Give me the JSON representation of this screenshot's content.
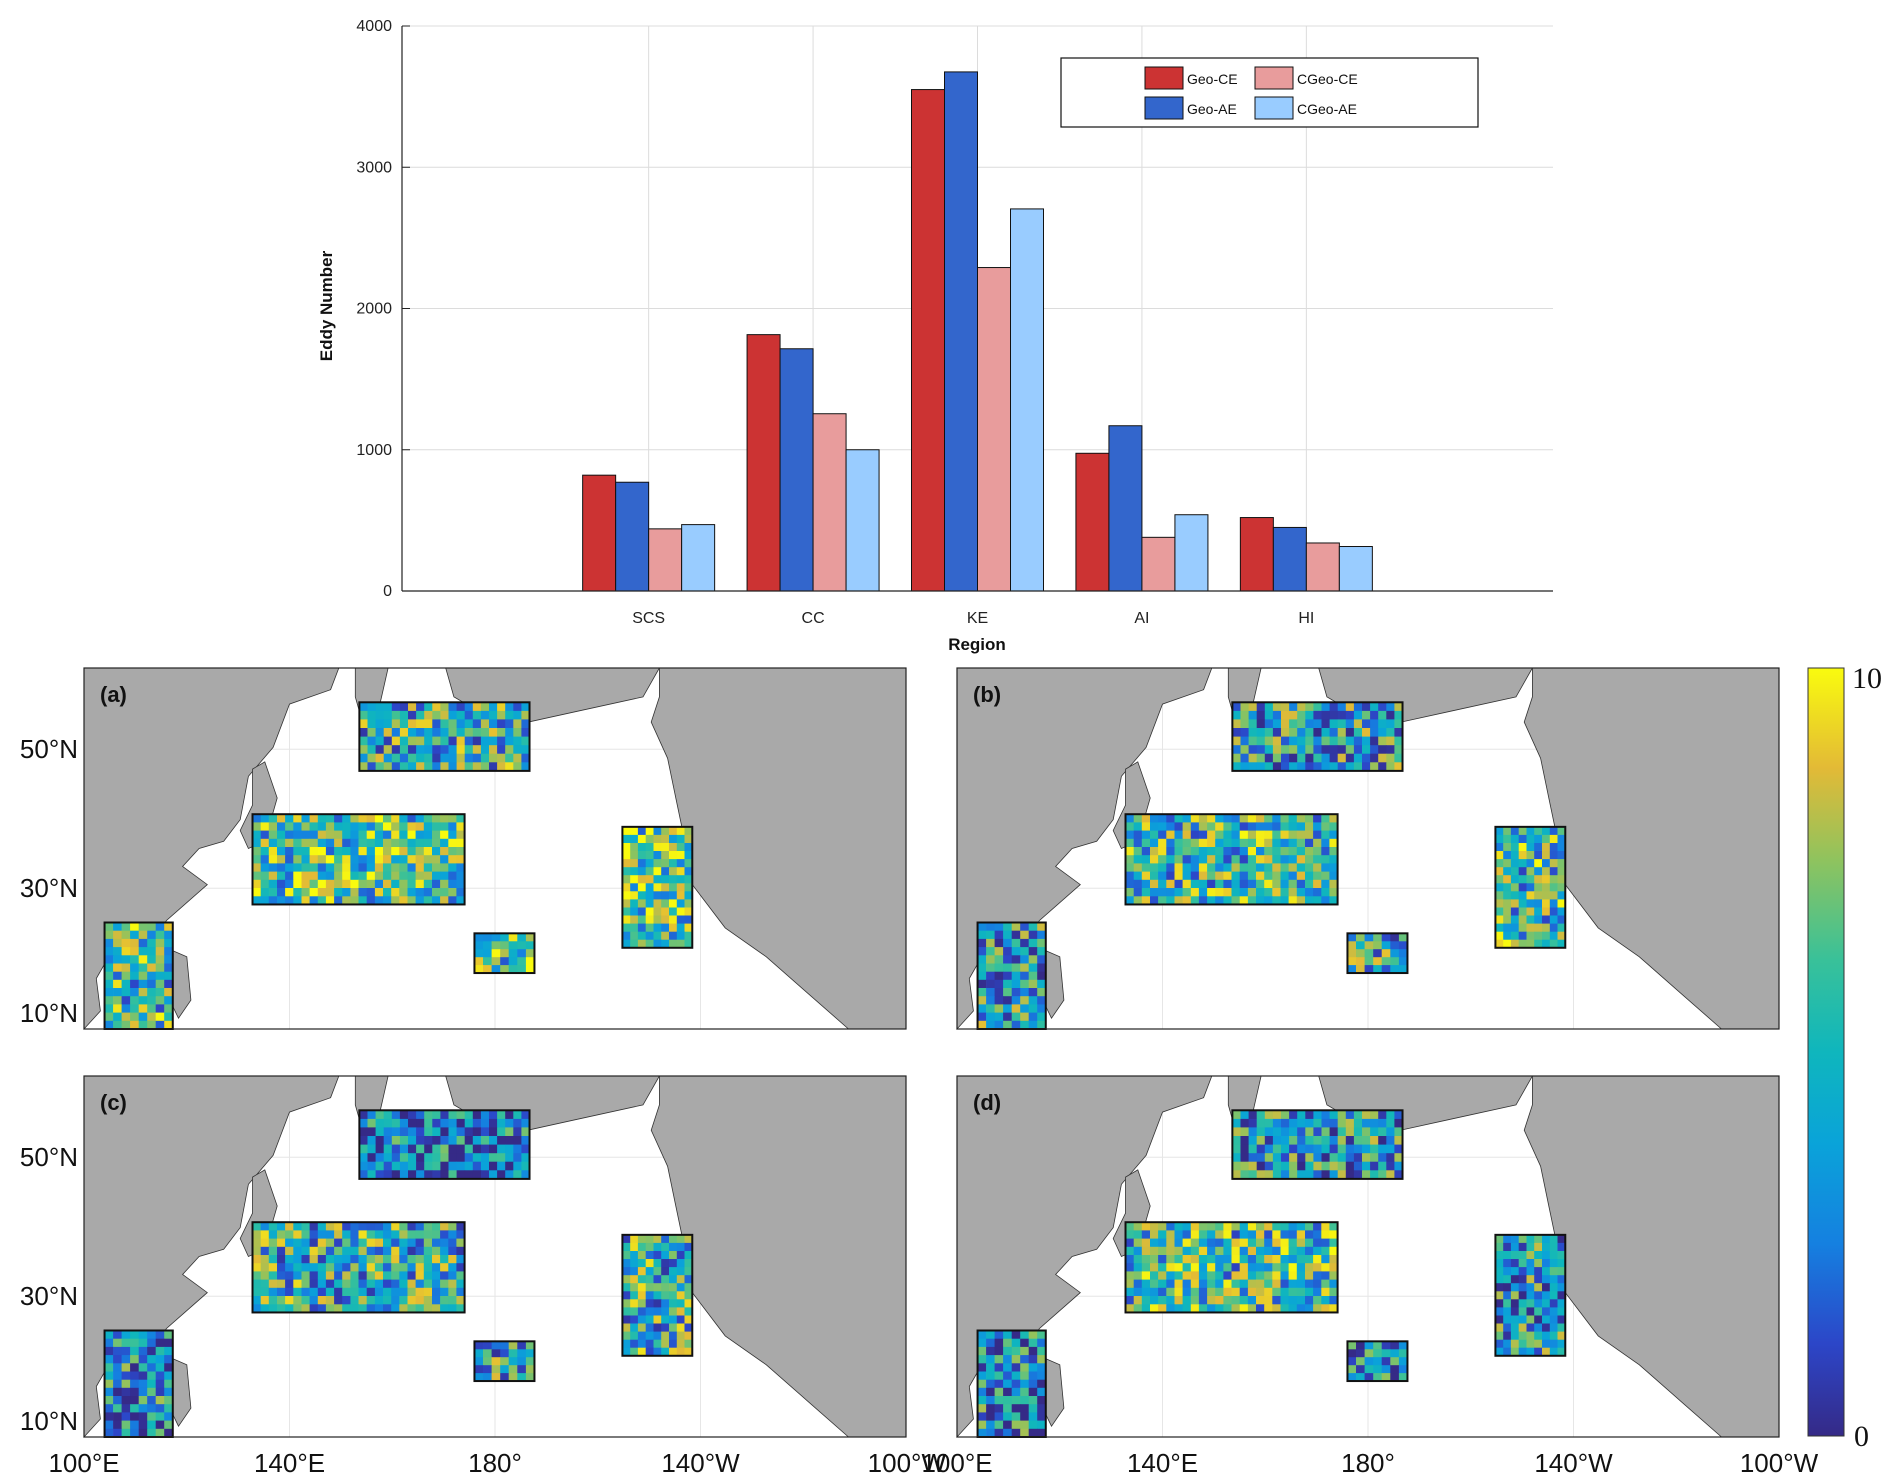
{
  "chart_data": [
    {
      "type": "bar",
      "title": "",
      "xlabel": "Region",
      "ylabel": "Eddy Number",
      "categories": [
        "SCS",
        "CC",
        "KE",
        "AI",
        "HI"
      ],
      "ylim": [
        0,
        4000
      ],
      "yticks": [
        0,
        1000,
        2000,
        3000,
        4000
      ],
      "grid": true,
      "legend_position": "top-right",
      "series": [
        {
          "name": "Geo-CE",
          "color": "#cc3333",
          "values": [
            820,
            1815,
            3550,
            975,
            520
          ]
        },
        {
          "name": "Geo-AE",
          "color": "#3366cc",
          "values": [
            770,
            1715,
            3675,
            1170,
            450
          ]
        },
        {
          "name": "CGeo-CE",
          "color": "#e89c9c",
          "values": [
            440,
            1255,
            2290,
            380,
            340
          ]
        },
        {
          "name": "CGeo-AE",
          "color": "#99ccff",
          "values": [
            470,
            1000,
            2705,
            540,
            315
          ]
        }
      ]
    },
    {
      "type": "heatmap",
      "title": "",
      "panels": [
        "(a)",
        "(b)",
        "(c)",
        "(d)"
      ],
      "x_ticks": [
        "100°E",
        "140°E",
        "180°",
        "140°W",
        "100°W"
      ],
      "y_ticks": [
        "50°N",
        "30°N",
        "10°N"
      ],
      "colorbar": {
        "min": 0,
        "max": 10,
        "labels": [
          "10",
          "0"
        ]
      },
      "regions": [
        "SCS",
        "CC",
        "KE",
        "AI",
        "HI"
      ]
    }
  ]
}
